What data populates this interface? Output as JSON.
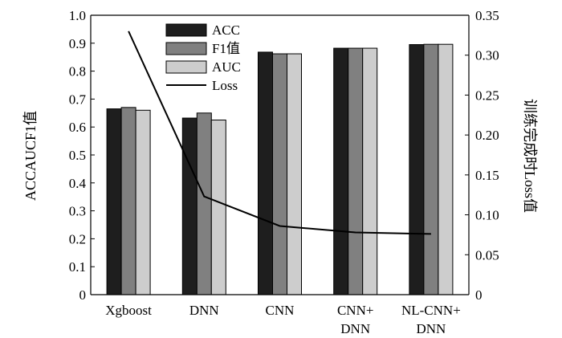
{
  "chart_data": {
    "type": "bar",
    "categories": [
      [
        "Xgboost"
      ],
      [
        "DNN"
      ],
      [
        "CNN"
      ],
      [
        "CNN+",
        "DNN"
      ],
      [
        "NL-CNN+",
        "DNN"
      ]
    ],
    "series": [
      {
        "name": "ACC",
        "values": [
          0.665,
          0.632,
          0.868,
          0.882,
          0.895
        ],
        "color": "#1e1e1e"
      },
      {
        "name": "F1值",
        "values": [
          0.67,
          0.65,
          0.862,
          0.882,
          0.896
        ],
        "color": "#808080"
      },
      {
        "name": "AUC",
        "values": [
          0.66,
          0.625,
          0.862,
          0.882,
          0.896
        ],
        "color": "#cdcdcd"
      }
    ],
    "line_series": {
      "name": "Loss",
      "axis": "right",
      "values": [
        0.33,
        0.123,
        0.086,
        0.078,
        0.076
      ],
      "color": "#000000"
    },
    "ylabel": "ACCAUCF1值",
    "y2label": "训练完成时Loss值",
    "xlabel": "",
    "ylim": [
      0,
      1.0
    ],
    "y2lim": [
      0,
      0.35
    ],
    "yticks": [
      "0",
      "0.1",
      "0.2",
      "0.3",
      "0.4",
      "0.5",
      "0.6",
      "0.7",
      "0.8",
      "0.9",
      "1.0"
    ],
    "y2ticks": [
      "0",
      "0.05",
      "0.10",
      "0.15",
      "0.20",
      "0.25",
      "0.30",
      "0.35"
    ],
    "legend_position": "top-left",
    "grid": false
  }
}
